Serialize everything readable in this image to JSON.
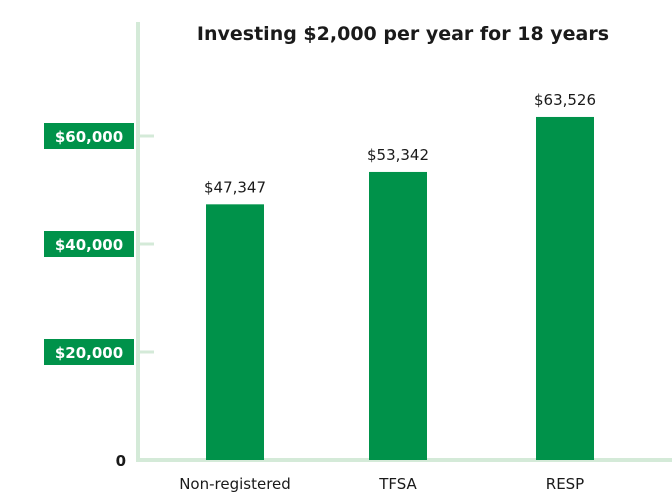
{
  "chart_data": {
    "type": "bar",
    "title": "Investing $2,000 per year for 18 years",
    "categories": [
      "Non-registered",
      "TFSA",
      "RESP"
    ],
    "values": [
      47347,
      53342,
      63526
    ],
    "value_labels": [
      "$47,347",
      "$53,342",
      "$63,526"
    ],
    "y_ticks": [
      {
        "value": 60000,
        "label": "$60,000"
      },
      {
        "value": 40000,
        "label": "$40,000"
      },
      {
        "value": 20000,
        "label": "$20,000"
      },
      {
        "value": 0,
        "label": "0"
      }
    ],
    "ylim": [
      0,
      80000
    ],
    "grid": false,
    "colors": {
      "bar": "#00924a",
      "tick_badge": "#00924a",
      "axis": "#d4ead8"
    }
  }
}
